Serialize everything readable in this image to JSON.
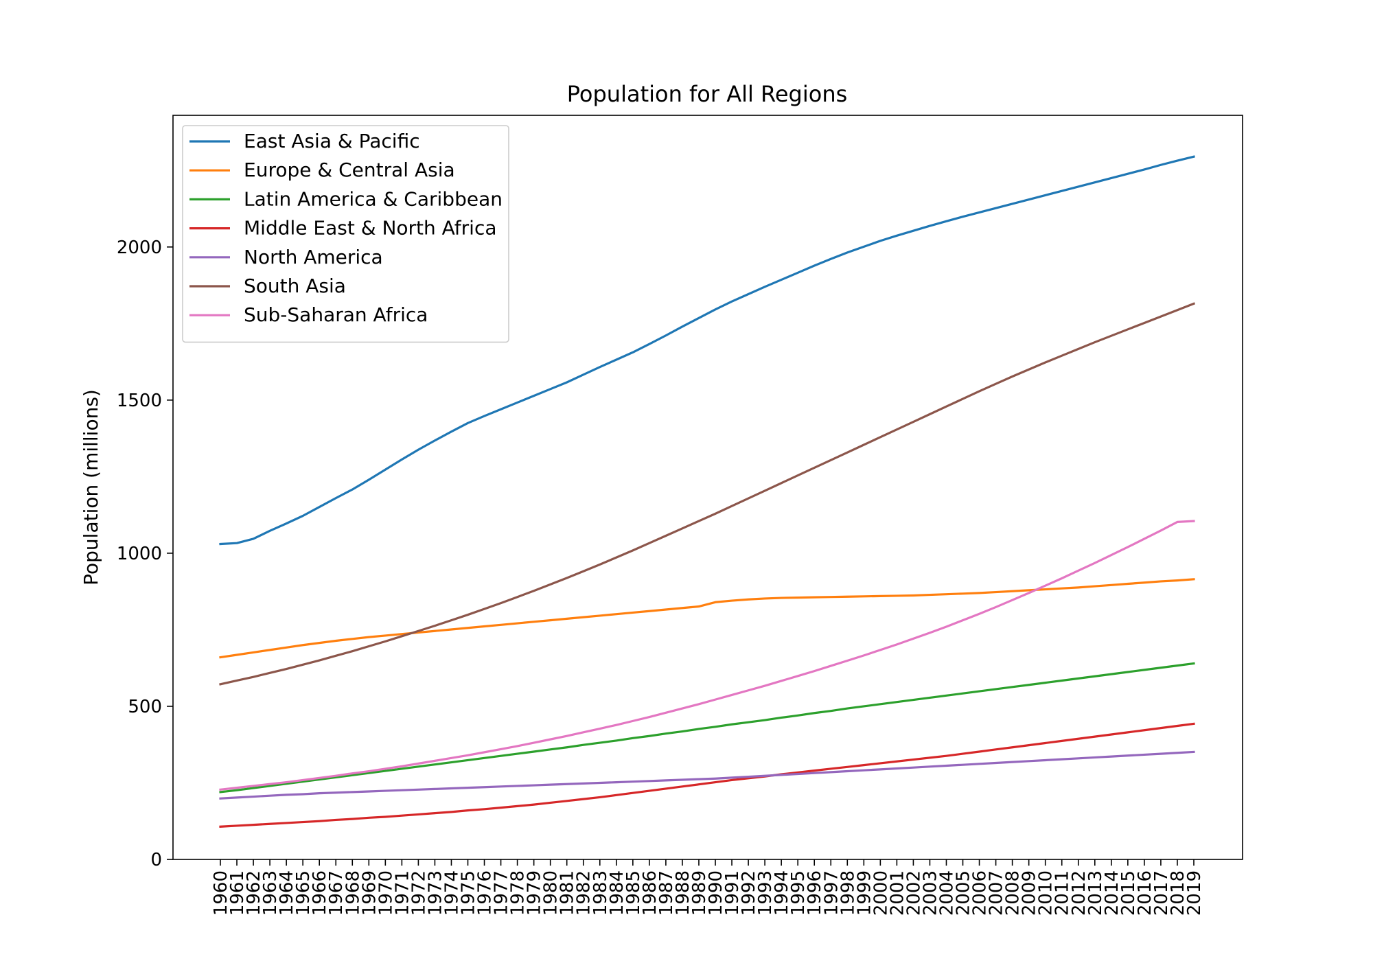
{
  "chart_data": {
    "type": "line",
    "title": "Population for All Regions",
    "xlabel": "",
    "ylabel": "Population (millions)",
    "ylim": [
      0,
      2430
    ],
    "yticks": [
      0,
      500,
      1000,
      1500,
      2000
    ],
    "grid": false,
    "legend_position": "upper left",
    "x": [
      "1960",
      "1961",
      "1962",
      "1963",
      "1964",
      "1965",
      "1966",
      "1967",
      "1968",
      "1969",
      "1970",
      "1971",
      "1972",
      "1973",
      "1974",
      "1975",
      "1976",
      "1977",
      "1978",
      "1979",
      "1980",
      "1981",
      "1982",
      "1983",
      "1984",
      "1985",
      "1986",
      "1987",
      "1988",
      "1989",
      "1990",
      "1991",
      "1992",
      "1993",
      "1994",
      "1995",
      "1996",
      "1997",
      "1998",
      "1999",
      "2000",
      "2001",
      "2002",
      "2003",
      "2004",
      "2005",
      "2006",
      "2007",
      "2008",
      "2009",
      "2010",
      "2011",
      "2012",
      "2013",
      "2014",
      "2015",
      "2016",
      "2017",
      "2018",
      "2019"
    ],
    "series": [
      {
        "name": "East Asia & Pacific",
        "color": "#1f77b4",
        "values": [
          1030,
          1033,
          1047,
          1073,
          1097,
          1122,
          1151,
          1180,
          1208,
          1240,
          1273,
          1306,
          1338,
          1368,
          1397,
          1425,
          1448,
          1470,
          1492,
          1514,
          1536,
          1558,
          1583,
          1608,
          1632,
          1656,
          1683,
          1711,
          1740,
          1768,
          1796,
          1822,
          1846,
          1870,
          1893,
          1916,
          1939,
          1961,
          1982,
          2001,
          2020,
          2037,
          2053,
          2069,
          2084,
          2099,
          2113,
          2127,
          2141,
          2155,
          2169,
          2183,
          2197,
          2211,
          2225,
          2239,
          2253,
          2268,
          2282,
          2295
        ]
      },
      {
        "name": "Europe & Central Asia",
        "color": "#ff7f0e",
        "values": [
          660,
          668,
          676,
          684,
          692,
          700,
          707,
          714,
          720,
          726,
          731,
          736,
          741,
          746,
          751,
          756,
          761,
          766,
          771,
          776,
          781,
          786,
          791,
          796,
          801,
          806,
          811,
          816,
          821,
          826,
          840,
          845,
          849,
          852,
          854,
          855,
          856,
          857,
          858,
          859,
          860,
          861,
          862,
          864,
          866,
          868,
          870,
          873,
          876,
          879,
          882,
          885,
          888,
          892,
          896,
          900,
          904,
          908,
          911,
          915
        ]
      },
      {
        "name": "Latin America & Caribbean",
        "color": "#2ca02c",
        "values": [
          220,
          226,
          233,
          240,
          247,
          254,
          261,
          268,
          275,
          282,
          289,
          296,
          303,
          310,
          317,
          324,
          331,
          338,
          345,
          352,
          359,
          366,
          374,
          381,
          388,
          396,
          403,
          411,
          418,
          426,
          433,
          441,
          448,
          455,
          463,
          470,
          478,
          485,
          493,
          500,
          507,
          514,
          521,
          528,
          535,
          542,
          549,
          556,
          563,
          570,
          577,
          584,
          591,
          598,
          605,
          612,
          619,
          626,
          633,
          640
        ]
      },
      {
        "name": "Middle East & North Africa",
        "color": "#d62728",
        "values": [
          107,
          110,
          113,
          116,
          119,
          122,
          125,
          129,
          132,
          136,
          139,
          143,
          147,
          151,
          155,
          160,
          164,
          169,
          174,
          179,
          185,
          191,
          197,
          203,
          210,
          217,
          224,
          231,
          238,
          245,
          252,
          259,
          265,
          271,
          278,
          284,
          290,
          296,
          302,
          308,
          314,
          320,
          326,
          332,
          338,
          345,
          352,
          359,
          366,
          373,
          380,
          387,
          394,
          401,
          408,
          415,
          422,
          429,
          436,
          443
        ]
      },
      {
        "name": "North America",
        "color": "#9467bd",
        "values": [
          199,
          202,
          205,
          208,
          211,
          213,
          216,
          218,
          220,
          222,
          224,
          226,
          228,
          230,
          232,
          234,
          236,
          238,
          240,
          242,
          244,
          246,
          248,
          250,
          252,
          254,
          256,
          258,
          260,
          262,
          264,
          267,
          270,
          273,
          276,
          279,
          282,
          285,
          288,
          291,
          294,
          297,
          300,
          303,
          306,
          309,
          312,
          315,
          318,
          321,
          324,
          327,
          330,
          333,
          336,
          339,
          342,
          345,
          348,
          351
        ]
      },
      {
        "name": "South Asia",
        "color": "#8c564b",
        "values": [
          572,
          584,
          596,
          609,
          622,
          636,
          650,
          665,
          680,
          696,
          712,
          729,
          746,
          763,
          781,
          799,
          818,
          837,
          857,
          877,
          898,
          919,
          941,
          963,
          986,
          1009,
          1033,
          1057,
          1081,
          1105,
          1129,
          1154,
          1179,
          1204,
          1229,
          1254,
          1279,
          1304,
          1329,
          1354,
          1379,
          1404,
          1429,
          1454,
          1479,
          1504,
          1529,
          1553,
          1577,
          1600,
          1623,
          1645,
          1667,
          1689,
          1710,
          1731,
          1752,
          1773,
          1794,
          1815
        ]
      },
      {
        "name": "Sub-Saharan Africa",
        "color": "#e377c2",
        "values": [
          228,
          234,
          240,
          246,
          252,
          259,
          266,
          273,
          281,
          288,
          296,
          304,
          313,
          322,
          331,
          340,
          350,
          360,
          370,
          381,
          392,
          403,
          415,
          427,
          439,
          452,
          465,
          479,
          493,
          507,
          522,
          537,
          552,
          567,
          583,
          599,
          615,
          632,
          649,
          666,
          684,
          702,
          721,
          740,
          760,
          781,
          802,
          824,
          847,
          870,
          894,
          918,
          943,
          968,
          994,
          1020,
          1047,
          1074,
          1102,
          1105
        ]
      }
    ]
  }
}
